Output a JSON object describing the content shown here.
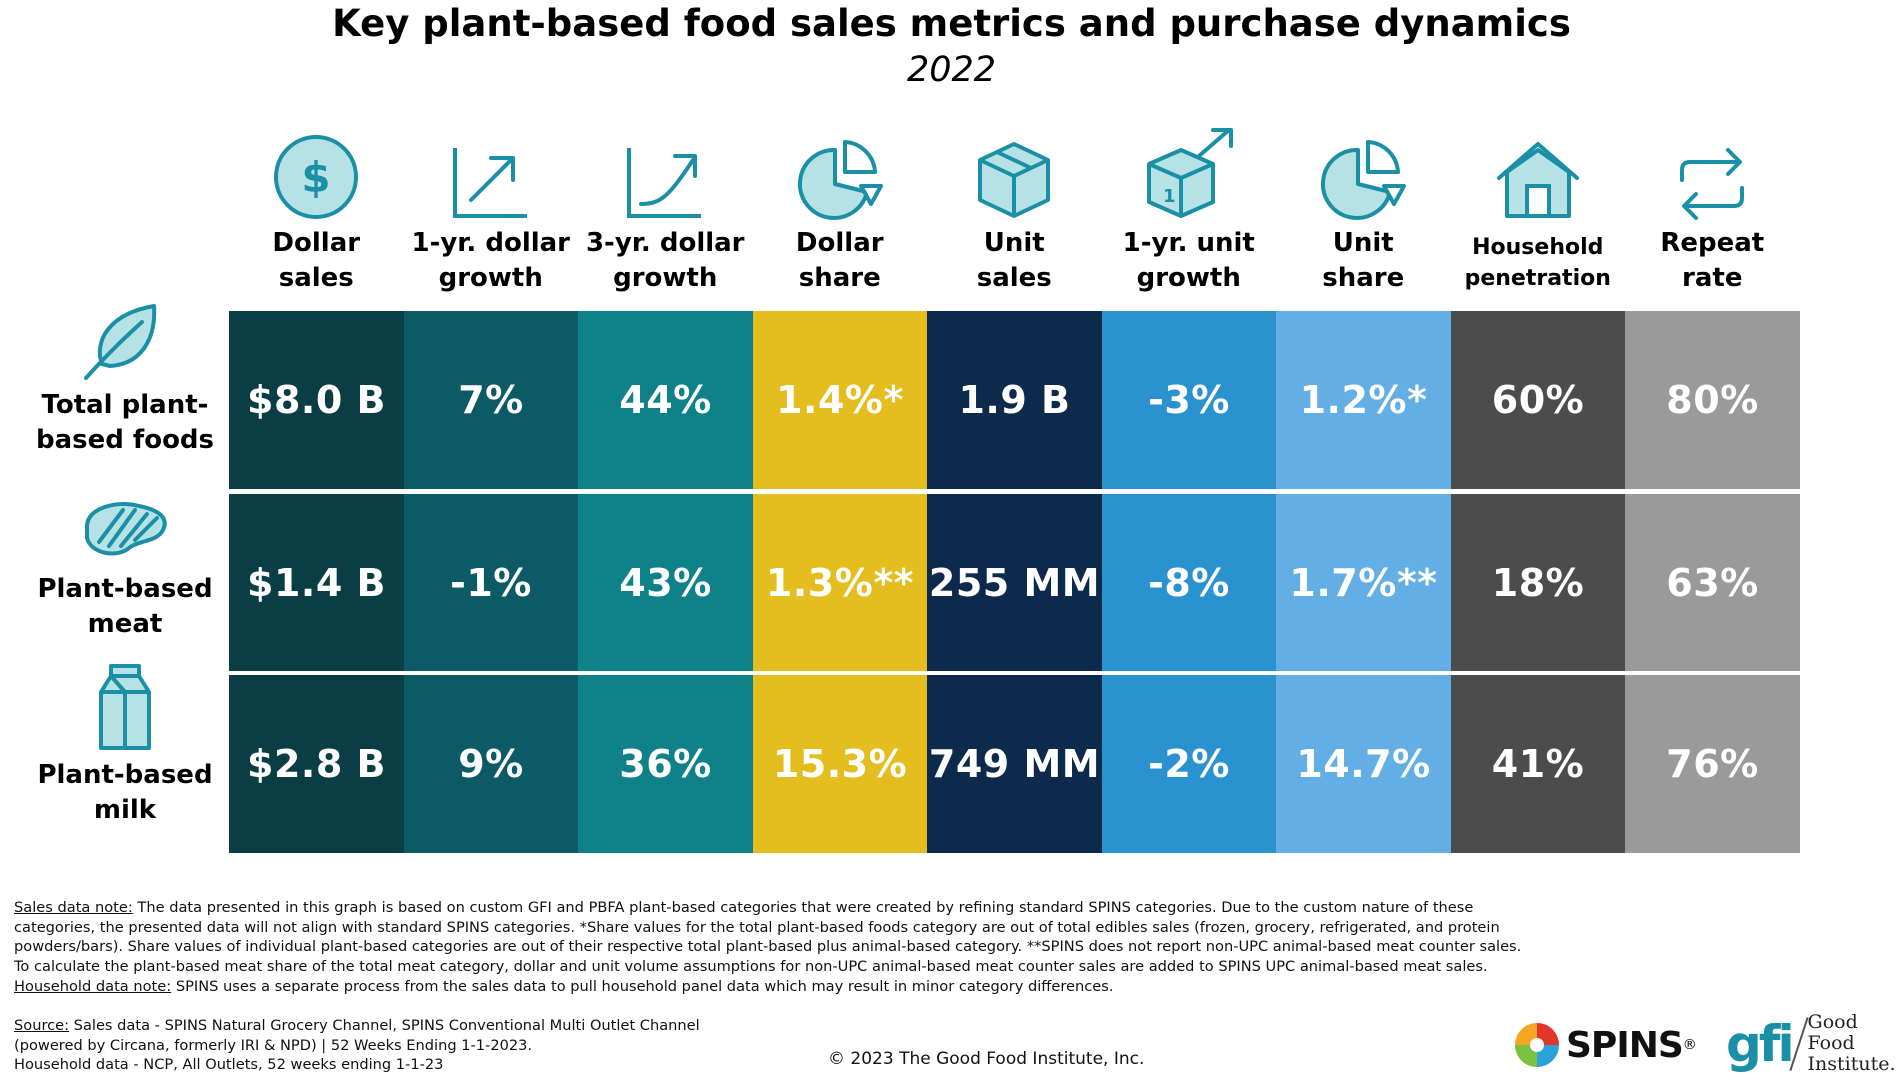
{
  "title": "Key plant-based food sales metrics and purchase dynamics",
  "subtitle": "2022",
  "colors": {
    "columns": [
      "#0b3d44",
      "#0c5a66",
      "#0e8189",
      "#e3be1e",
      "#0d2a4d",
      "#2a93cf",
      "#63aee4",
      "#4c4c4c",
      "#9a9a9a"
    ],
    "icon_teal": "#1b8fa6",
    "icon_fill": "#b6e2e6"
  },
  "columns": [
    {
      "label": "Dollar\nsales",
      "icon": "dollar-icon"
    },
    {
      "label": "1-yr. dollar\ngrowth",
      "icon": "growth-arrow-icon"
    },
    {
      "label": "3-yr. dollar\ngrowth",
      "icon": "growth-curve-icon"
    },
    {
      "label": "Dollar\nshare",
      "icon": "pie-chart-icon"
    },
    {
      "label": "Unit\nsales",
      "icon": "box-icon"
    },
    {
      "label": "1-yr. unit\ngrowth",
      "icon": "box-arrow-icon"
    },
    {
      "label": "Unit\nshare",
      "icon": "pie-chart-icon"
    },
    {
      "label": "Household\npenetration",
      "icon": "house-icon"
    },
    {
      "label": "Repeat\nrate",
      "icon": "repeat-icon"
    }
  ],
  "rows": [
    {
      "label": "Total plant-\nbased foods",
      "icon": "leaf-icon",
      "values": [
        "$8.0 B",
        "7%",
        "44%",
        "1.4%*",
        "1.9 B",
        "-3%",
        "1.2%*",
        "60%",
        "80%"
      ]
    },
    {
      "label": "Plant-based\nmeat",
      "icon": "steak-icon",
      "values": [
        "$1.4 B",
        "-1%",
        "43%",
        "1.3%**",
        "255 MM",
        "-8%",
        "1.7%**",
        "18%",
        "63%"
      ]
    },
    {
      "label": "Plant-based\nmilk",
      "icon": "milk-carton-icon",
      "values": [
        "$2.8 B",
        "9%",
        "36%",
        "15.3%",
        "749 MM",
        "-2%",
        "14.7%",
        "41%",
        "76%"
      ]
    }
  ],
  "chart_data": {
    "type": "table",
    "title": "Key plant-based food sales metrics and purchase dynamics",
    "subtitle": "2022",
    "columns": [
      "Dollar sales",
      "1-yr. dollar growth",
      "3-yr. dollar growth",
      "Dollar share",
      "Unit sales",
      "1-yr. unit growth",
      "Unit share",
      "Household penetration",
      "Repeat rate"
    ],
    "rows": [
      "Total plant-based foods",
      "Plant-based meat",
      "Plant-based milk"
    ],
    "values": [
      [
        "$8.0 B",
        "7%",
        "44%",
        "1.4%*",
        "1.9 B",
        "-3%",
        "1.2%*",
        "60%",
        "80%"
      ],
      [
        "$1.4 B",
        "-1%",
        "43%",
        "1.3%**",
        "255 MM",
        "-8%",
        "1.7%**",
        "18%",
        "63%"
      ],
      [
        "$2.8 B",
        "9%",
        "36%",
        "15.3%",
        "749 MM",
        "-2%",
        "14.7%",
        "41%",
        "76%"
      ]
    ]
  },
  "notes": {
    "sales_label": "Sales data note:",
    "sales_text_1": " The data presented in this graph is based on custom GFI and PBFA plant-based categories that were created by refining standard SPINS categories. Due to the custom nature of these categories, the presented data will not align with standard SPINS categories. *Share values for the total plant-based foods category are out of total edibles sales (frozen, grocery, refrigerated, and protein powders/bars). Share values of individual plant-based categories are out of their respective total plant-based plus animal-based category. **SPINS does not report non-UPC animal-based meat counter sales. To calculate the plant-based meat share of the total meat category, dollar and unit volume assumptions for non-UPC animal-based meat counter sales are added to SPINS UPC animal-based meat sales. ",
    "household_label": "Household data note:",
    "household_text": " SPINS uses a separate process from the sales data to pull household panel data which may result in minor category differences."
  },
  "source": {
    "label": "Source:",
    "line1": " Sales data - SPINS Natural Grocery Channel, SPINS Conventional Multi Outlet Channel",
    "line2": "(powered by Circana, formerly IRI & NPD) | 52 Weeks Ending 1-1-2023.",
    "line3": "Household data - NCP, All Outlets, 52 weeks ending 1-1-23"
  },
  "copyright": "© 2023 The Good Food Institute, Inc.",
  "logos": {
    "spins": "SPINS",
    "spins_mark": "®",
    "gfi_mark": "gfi",
    "gfi_name": "Good Food\nInstitute."
  }
}
